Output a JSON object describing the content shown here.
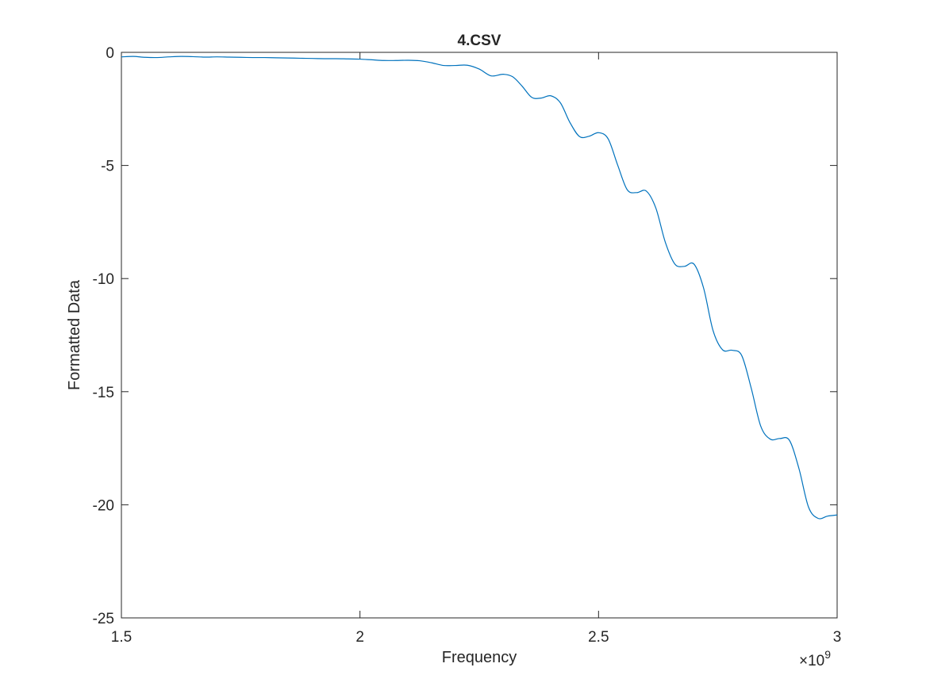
{
  "chart_data": {
    "type": "line",
    "title": "4.CSV",
    "xlabel": "Frequency",
    "ylabel": "Formatted Data",
    "x_exponent_label": "×10",
    "x_exponent_power": "9",
    "xlim": [
      1.5,
      3.0
    ],
    "ylim": [
      -25,
      0
    ],
    "x_scale": 1000000000,
    "xticks": [
      1.5,
      2,
      2.5,
      3
    ],
    "xtick_labels": [
      "1.5",
      "2",
      "2.5",
      "3"
    ],
    "yticks": [
      0,
      -5,
      -10,
      -15,
      -20,
      -25
    ],
    "ytick_labels": [
      "0",
      "-5",
      "-10",
      "-15",
      "-20",
      "-25"
    ],
    "grid": false,
    "line_color": "#0072BD",
    "series": [
      {
        "x": [
          1.5,
          1.525,
          1.55,
          1.575,
          1.6,
          1.625,
          1.65,
          1.675,
          1.7,
          1.725,
          1.75,
          1.775,
          1.8,
          1.825,
          1.85,
          1.875,
          1.9,
          1.925,
          1.95,
          1.975,
          2.0,
          2.025,
          2.05,
          2.075,
          2.1,
          2.125,
          2.15,
          2.175,
          2.2,
          2.225,
          2.25,
          2.275,
          2.3,
          2.32,
          2.34,
          2.36,
          2.38,
          2.4,
          2.42,
          2.44,
          2.46,
          2.48,
          2.5,
          2.52,
          2.54,
          2.56,
          2.58,
          2.6,
          2.62,
          2.64,
          2.66,
          2.68,
          2.7,
          2.72,
          2.74,
          2.76,
          2.78,
          2.8,
          2.82,
          2.84,
          2.86,
          2.88,
          2.9,
          2.92,
          2.94,
          2.96,
          2.98,
          3.0
        ],
        "y": [
          -0.2,
          -0.18,
          -0.22,
          -0.23,
          -0.2,
          -0.18,
          -0.19,
          -0.21,
          -0.2,
          -0.21,
          -0.22,
          -0.23,
          -0.23,
          -0.24,
          -0.25,
          -0.26,
          -0.27,
          -0.28,
          -0.28,
          -0.29,
          -0.3,
          -0.33,
          -0.36,
          -0.36,
          -0.35,
          -0.37,
          -0.46,
          -0.58,
          -0.58,
          -0.57,
          -0.74,
          -1.04,
          -0.97,
          -1.08,
          -1.5,
          -1.99,
          -2.02,
          -1.92,
          -2.23,
          -3.1,
          -3.72,
          -3.71,
          -3.55,
          -3.82,
          -4.98,
          -6.07,
          -6.2,
          -6.13,
          -6.88,
          -8.4,
          -9.36,
          -9.46,
          -9.36,
          -10.41,
          -12.3,
          -13.15,
          -13.17,
          -13.4,
          -14.85,
          -16.53,
          -17.1,
          -17.07,
          -17.15,
          -18.4,
          -20.1,
          -20.6,
          -20.5,
          -20.45
        ]
      }
    ]
  }
}
